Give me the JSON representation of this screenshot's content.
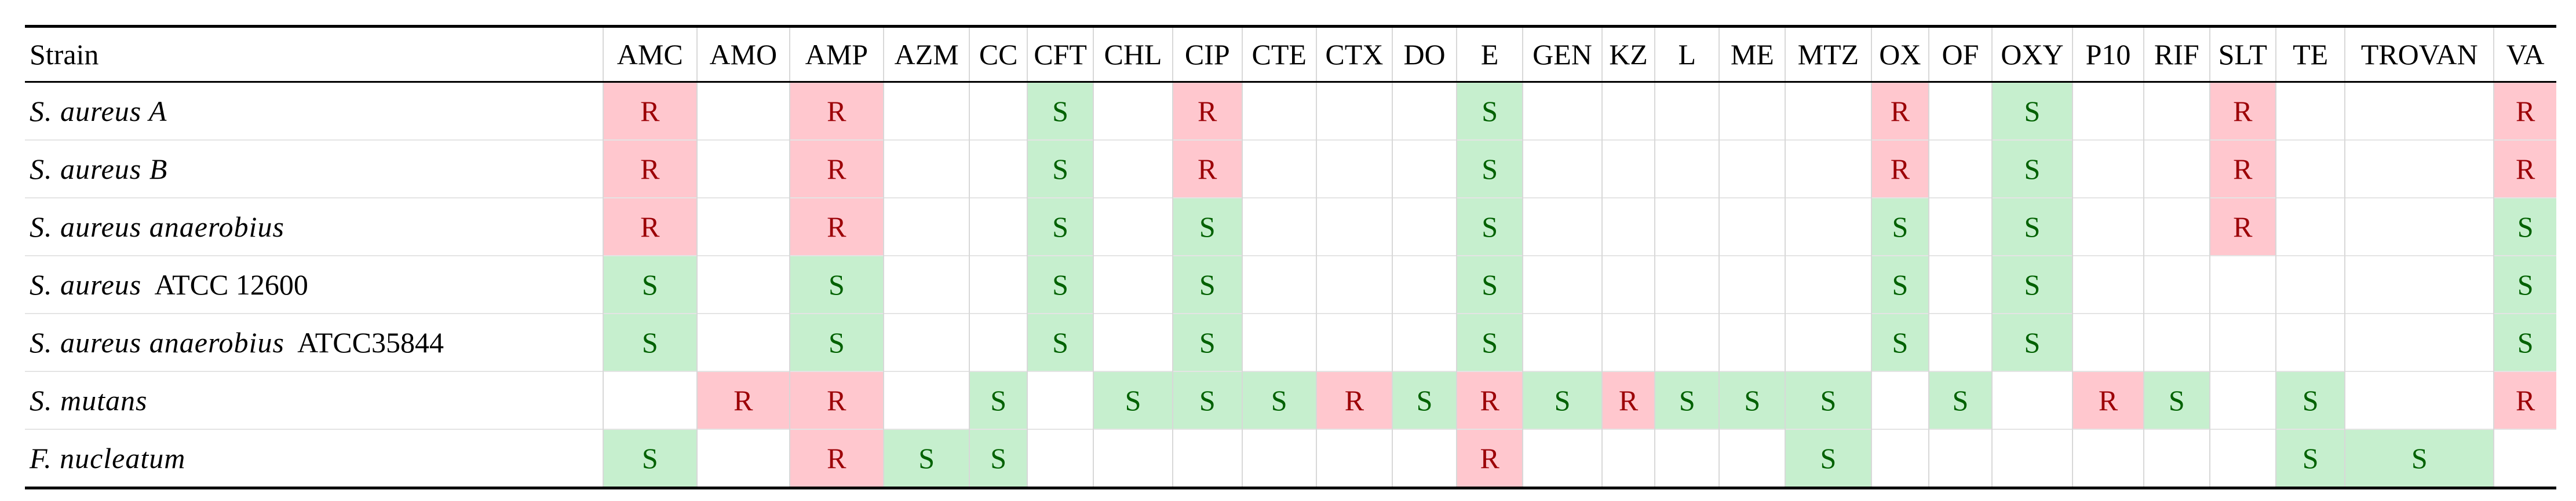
{
  "table": {
    "columns": [
      "Strain",
      "AMC",
      "AMO",
      "AMP",
      "AZM",
      "CC",
      "CFT",
      "CHL",
      "CIP",
      "CTE",
      "CTX",
      "DO",
      "E",
      "GEN",
      "KZ",
      "L",
      "ME",
      "MTZ",
      "OX",
      "OF",
      "OXY",
      "P10",
      "RIF",
      "SLT",
      "TE",
      "TROVAN",
      "VA"
    ],
    "rows": [
      {
        "strain": {
          "name": "S. aureus A"
        },
        "cells": [
          "R",
          null,
          "R",
          null,
          null,
          "S",
          null,
          "R",
          null,
          null,
          null,
          "S",
          null,
          null,
          null,
          null,
          null,
          "R",
          null,
          "S",
          null,
          null,
          "R",
          null,
          null,
          "R"
        ]
      },
      {
        "strain": {
          "name": "S. aureus B"
        },
        "cells": [
          "R",
          null,
          "R",
          null,
          null,
          "S",
          null,
          "R",
          null,
          null,
          null,
          "S",
          null,
          null,
          null,
          null,
          null,
          "R",
          null,
          "S",
          null,
          null,
          "R",
          null,
          null,
          "R"
        ]
      },
      {
        "strain": {
          "name": "S. aureus anaerobius"
        },
        "cells": [
          "R",
          null,
          "R",
          null,
          null,
          "S",
          null,
          "S",
          null,
          null,
          null,
          "S",
          null,
          null,
          null,
          null,
          null,
          "S",
          null,
          "S",
          null,
          null,
          "R",
          null,
          null,
          "S"
        ]
      },
      {
        "strain": {
          "name": "S. aureus",
          "suffix": "ATCC 12600"
        },
        "cells": [
          "S",
          null,
          "S",
          null,
          null,
          "S",
          null,
          "S",
          null,
          null,
          null,
          "S",
          null,
          null,
          null,
          null,
          null,
          "S",
          null,
          "S",
          null,
          null,
          null,
          null,
          null,
          "S"
        ]
      },
      {
        "strain": {
          "name": "S. aureus anaerobius",
          "suffix": "ATCC35844"
        },
        "cells": [
          "S",
          null,
          "S",
          null,
          null,
          "S",
          null,
          "S",
          null,
          null,
          null,
          "S",
          null,
          null,
          null,
          null,
          null,
          "S",
          null,
          "S",
          null,
          null,
          null,
          null,
          null,
          "S"
        ]
      },
      {
        "strain": {
          "name": "S. mutans"
        },
        "cells": [
          null,
          "R",
          "R",
          null,
          "S",
          null,
          "S",
          "S",
          "S",
          "R",
          "S",
          "R",
          "S",
          "R",
          "S",
          "S",
          "S",
          null,
          "S",
          null,
          "R",
          "S",
          null,
          "S",
          null,
          "R"
        ]
      },
      {
        "strain": {
          "name": "F. nucleatum"
        },
        "cells": [
          "S",
          null,
          "R",
          "S",
          "S",
          null,
          null,
          null,
          null,
          null,
          null,
          "R",
          null,
          null,
          null,
          null,
          "S",
          null,
          null,
          null,
          null,
          null,
          null,
          "S",
          "S",
          null
        ]
      }
    ]
  }
}
